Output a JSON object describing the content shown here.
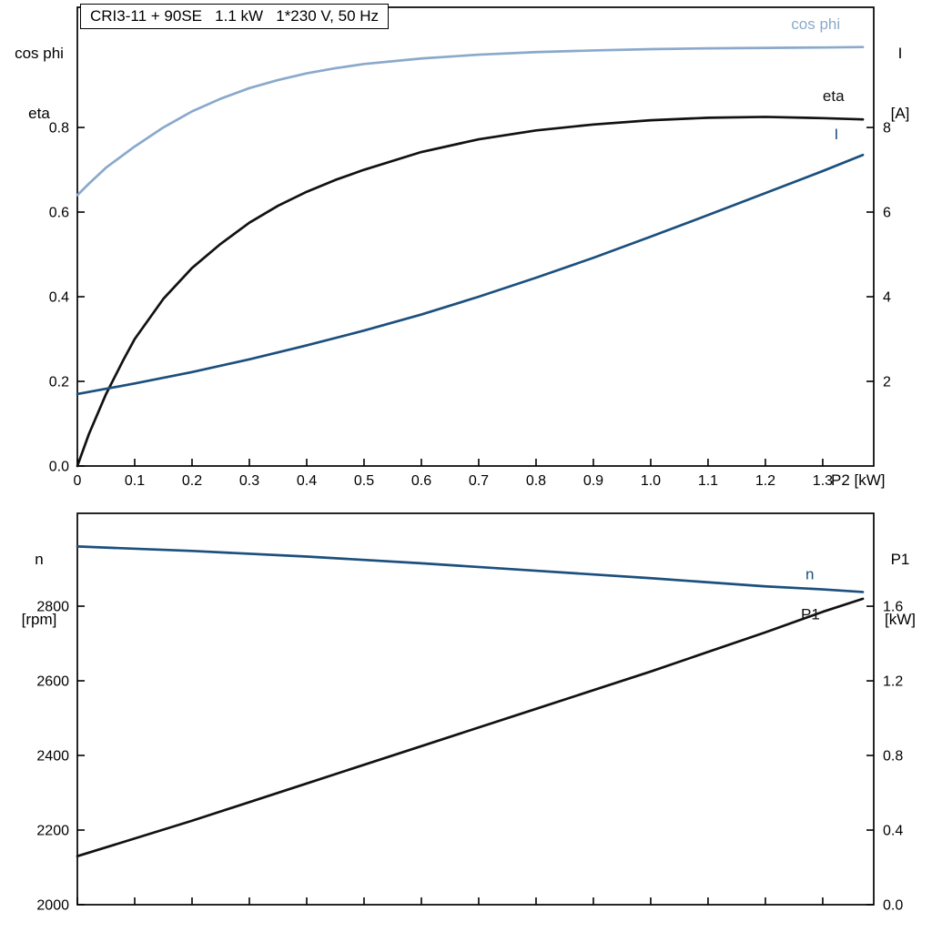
{
  "title": "CRI3-11 + 90SE   1.1 kW   1*230 V, 50 Hz",
  "colors": {
    "light_blue": "#8aa9cb",
    "dark_blue": "#1b4f7e",
    "black": "#111111",
    "frame": "#000000"
  },
  "chart_data": [
    {
      "type": "line",
      "title": "CRI3-11 + 90SE   1.1 kW   1*230 V, 50 Hz",
      "xlabel": "P2 [kW]",
      "left_axis_label": [
        "cos phi",
        "eta"
      ],
      "right_axis_label": [
        "I",
        "[A]"
      ],
      "xlim": [
        0,
        1.389
      ],
      "left_ylim": [
        0,
        1.084
      ],
      "right_ylim": [
        0,
        10.84
      ],
      "grid": false,
      "legend_position": "curve-end-labels",
      "x_ticks": {
        "values": [
          0,
          0.1,
          0.2,
          0.3,
          0.4,
          0.5,
          0.6,
          0.7,
          0.8,
          0.9,
          1.0,
          1.1,
          1.2,
          1.3
        ],
        "labels": [
          "0",
          "0.1",
          "0.2",
          "0.3",
          "0.4",
          "0.5",
          "0.6",
          "0.7",
          "0.8",
          "0.9",
          "1.0",
          "1.1",
          "1.2",
          "1.3"
        ]
      },
      "left_ticks": {
        "values": [
          0.0,
          0.2,
          0.4,
          0.6,
          0.8
        ],
        "labels": [
          "0.0",
          "0.2",
          "0.4",
          "0.6",
          "0.8"
        ]
      },
      "right_ticks": {
        "values": [
          2,
          4,
          6,
          8
        ],
        "labels": [
          "2",
          "4",
          "6",
          "8"
        ]
      },
      "series": [
        {
          "name": "cos phi",
          "axis": "left",
          "color": "#8aa9cb",
          "width": 2.7,
          "x": [
            0,
            0.02,
            0.05,
            0.08,
            0.1,
            0.15,
            0.2,
            0.25,
            0.3,
            0.35,
            0.4,
            0.45,
            0.5,
            0.6,
            0.7,
            0.8,
            0.9,
            1.0,
            1.1,
            1.2,
            1.3,
            1.37
          ],
          "y": [
            0.64,
            0.667,
            0.705,
            0.735,
            0.755,
            0.8,
            0.838,
            0.868,
            0.893,
            0.912,
            0.928,
            0.94,
            0.95,
            0.963,
            0.972,
            0.978,
            0.982,
            0.985,
            0.987,
            0.988,
            0.989,
            0.99
          ],
          "label": "cos phi",
          "label_at": [
            1.245,
            1.032
          ]
        },
        {
          "name": "eta",
          "axis": "left",
          "color": "#111111",
          "width": 2.7,
          "x": [
            0,
            0.02,
            0.05,
            0.08,
            0.1,
            0.15,
            0.2,
            0.25,
            0.3,
            0.35,
            0.4,
            0.45,
            0.5,
            0.6,
            0.7,
            0.8,
            0.9,
            1.0,
            1.1,
            1.2,
            1.3,
            1.37
          ],
          "y": [
            0,
            0.075,
            0.17,
            0.25,
            0.3,
            0.395,
            0.468,
            0.525,
            0.575,
            0.615,
            0.648,
            0.676,
            0.7,
            0.742,
            0.772,
            0.793,
            0.807,
            0.817,
            0.823,
            0.825,
            0.822,
            0.819
          ],
          "label": "eta",
          "label_at": [
            1.3,
            0.862
          ]
        },
        {
          "name": "I",
          "axis": "right",
          "color": "#1b4f7e",
          "width": 2.7,
          "x": [
            0,
            0.1,
            0.2,
            0.3,
            0.4,
            0.5,
            0.6,
            0.7,
            0.8,
            0.9,
            1.0,
            1.1,
            1.2,
            1.3,
            1.37
          ],
          "y": [
            1.7,
            1.95,
            2.22,
            2.52,
            2.85,
            3.2,
            3.58,
            4.0,
            4.45,
            4.92,
            5.42,
            5.93,
            6.45,
            6.97,
            7.35
          ],
          "label": "I",
          "label_at": [
            1.32,
            7.72
          ]
        }
      ]
    },
    {
      "type": "line",
      "title": "",
      "xlabel": "",
      "left_axis_label": [
        "n",
        "[rpm]"
      ],
      "right_axis_label": [
        "P1",
        "[kW]"
      ],
      "xlim": [
        0,
        1.389
      ],
      "left_ylim": [
        2000,
        3048.8
      ],
      "right_ylim": [
        0,
        2.098
      ],
      "grid": false,
      "legend_position": "curve-end-labels",
      "x_ticks": {
        "values": [
          0,
          0.1,
          0.2,
          0.3,
          0.4,
          0.5,
          0.6,
          0.7,
          0.8,
          0.9,
          1.0,
          1.1,
          1.2,
          1.3
        ],
        "labels": []
      },
      "left_ticks": {
        "values": [
          2000,
          2200,
          2400,
          2600,
          2800
        ],
        "labels": [
          "2000",
          "2200",
          "2400",
          "2600",
          "2800"
        ]
      },
      "right_ticks": {
        "values": [
          0.0,
          0.4,
          0.8,
          1.2,
          1.6
        ],
        "labels": [
          "0.0",
          "0.4",
          "0.8",
          "1.2",
          "1.6"
        ]
      },
      "series": [
        {
          "name": "n",
          "axis": "left",
          "color": "#1b4f7e",
          "width": 2.7,
          "x": [
            0,
            0.2,
            0.4,
            0.6,
            0.8,
            1.0,
            1.2,
            1.3,
            1.37
          ],
          "y": [
            2960,
            2948,
            2933,
            2915,
            2895,
            2875,
            2853,
            2845,
            2838
          ],
          "label": "n",
          "label_at": [
            1.27,
            2872
          ]
        },
        {
          "name": "P1",
          "axis": "right",
          "color": "#111111",
          "width": 2.7,
          "x": [
            0,
            0.2,
            0.4,
            0.6,
            0.8,
            1.0,
            1.2,
            1.3,
            1.37
          ],
          "y": [
            0.26,
            0.45,
            0.65,
            0.85,
            1.05,
            1.25,
            1.46,
            1.57,
            1.64
          ],
          "label": "P1",
          "label_at": [
            1.262,
            1.53
          ]
        }
      ]
    }
  ]
}
